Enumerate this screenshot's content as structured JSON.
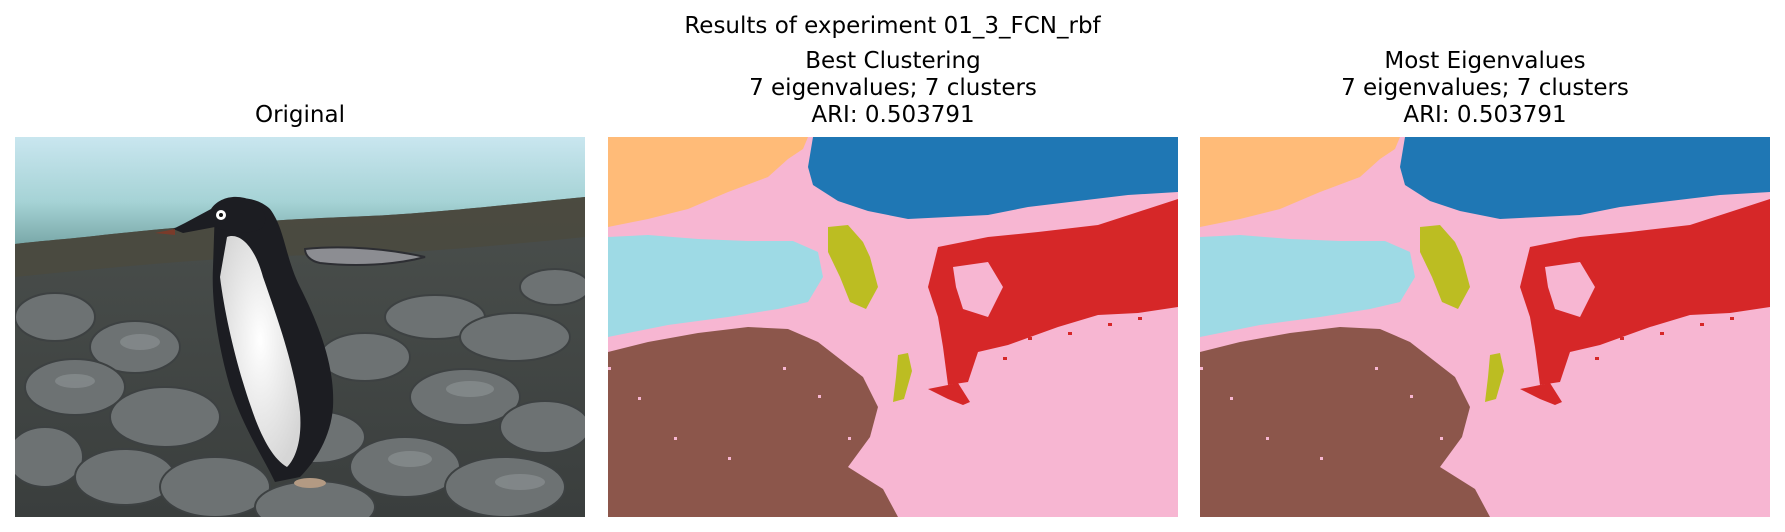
{
  "figure": {
    "suptitle": "Results of experiment 01_3_FCN_rbf"
  },
  "panels": [
    {
      "title_lines": [
        "Original"
      ]
    },
    {
      "title_lines": [
        "Best Clustering",
        "7 eigenvalues; 7 clusters",
        "ARI: 0.503791"
      ]
    },
    {
      "title_lines": [
        "Most Eigenvalues",
        "7 eigenvalues; 7 clusters",
        "ARI: 0.503791"
      ]
    }
  ],
  "cluster_colors": {
    "peach": "#ffbb78",
    "blue": "#1f77b4",
    "pink": "#f7b6d2",
    "light_blue": "#9edae5",
    "olive": "#bcbd22",
    "red": "#d62728",
    "brown": "#8c564b"
  }
}
